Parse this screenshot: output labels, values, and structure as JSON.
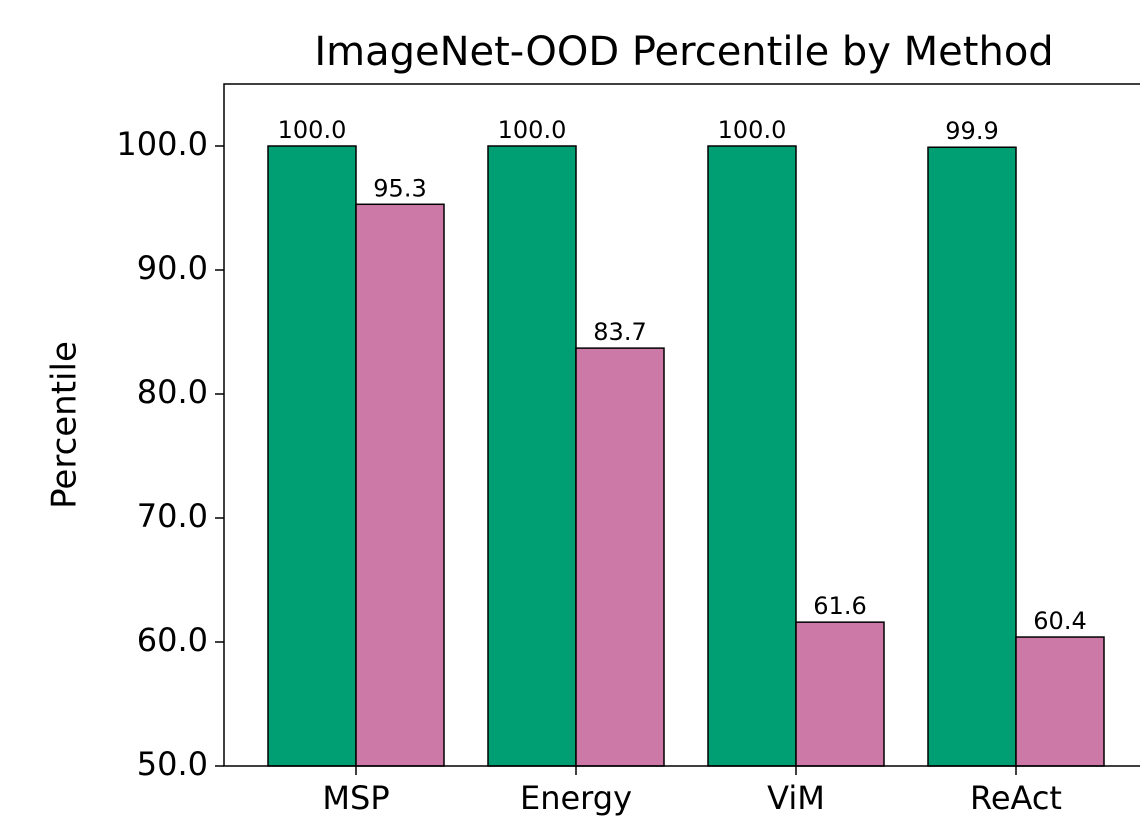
{
  "chart_data": {
    "type": "bar",
    "title": "ImageNet-OOD Percentile by Method",
    "y_label": "Percentile",
    "categories": [
      "MSP",
      "Energy",
      "ViM",
      "ReAct"
    ],
    "series": [
      {
        "color": "#009e73",
        "values": [
          100.0,
          100.0,
          100.0,
          99.9
        ],
        "value_labels": [
          "100.0",
          "100.0",
          "100.0",
          "99.9"
        ]
      },
      {
        "color": "#cc79a7",
        "values": [
          95.3,
          83.7,
          61.6,
          60.4
        ],
        "value_labels": [
          "95.3",
          "83.7",
          "61.6",
          "60.4"
        ]
      }
    ],
    "ylim": [
      50,
      105
    ],
    "yticks": [
      {
        "value": 50,
        "label": "50.0"
      },
      {
        "value": 60,
        "label": "60.0"
      },
      {
        "value": 70,
        "label": "70.0"
      },
      {
        "value": 80,
        "label": "80.0"
      },
      {
        "value": 90,
        "label": "90.0"
      },
      {
        "value": 100,
        "label": "100.0"
      }
    ]
  }
}
